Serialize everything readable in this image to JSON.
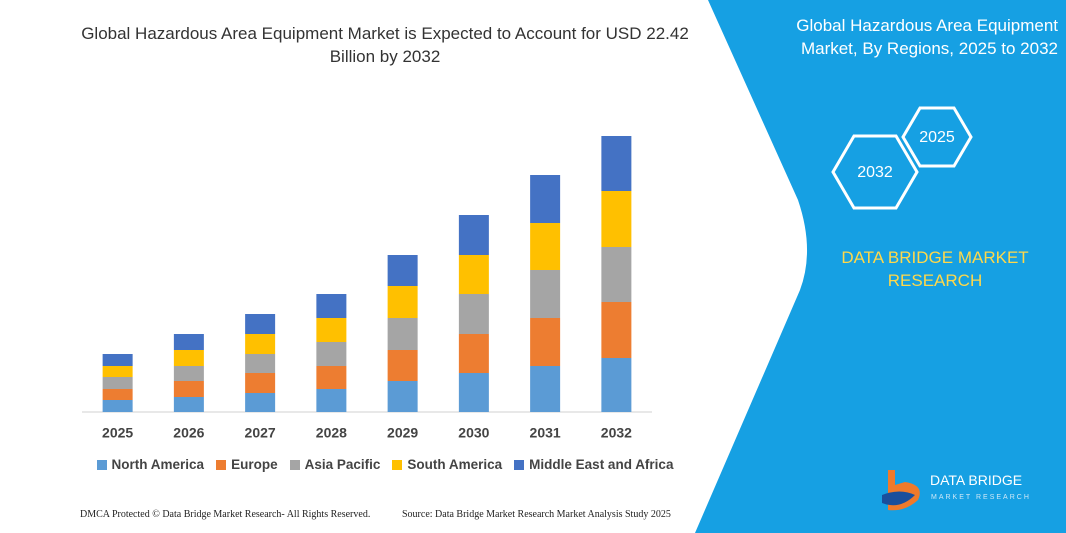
{
  "chart_data": {
    "type": "stacked_bar",
    "title": "Global Hazardous Area Equipment Market is Expected to Account for USD 22.42 Billion by 2032",
    "categories": [
      "2025",
      "2026",
      "2027",
      "2028",
      "2029",
      "2030",
      "2031",
      "2032"
    ],
    "series": [
      {
        "name": "North America",
        "color": "#5b9bd5",
        "values": [
          12,
          15,
          19,
          23,
          31,
          39,
          46,
          54
        ]
      },
      {
        "name": "Europe",
        "color": "#ed7d31",
        "values": [
          11,
          16,
          20,
          23,
          31,
          39,
          48,
          56
        ]
      },
      {
        "name": "Asia Pacific",
        "color": "#a5a5a5",
        "values": [
          12,
          15,
          19,
          24,
          32,
          40,
          48,
          55
        ]
      },
      {
        "name": "South America",
        "color": "#ffc000",
        "values": [
          11,
          16,
          20,
          24,
          32,
          39,
          47,
          56
        ]
      },
      {
        "name": "Middle East and Africa",
        "color": "#4472c4",
        "values": [
          12,
          16,
          20,
          24,
          31,
          40,
          48,
          55
        ]
      }
    ],
    "ylim": [
      0,
      276
    ]
  },
  "panel": {
    "title": "Global Hazardous Area Equipment Market, By Regions, 2025 to 2032",
    "hexagons": [
      "2025",
      "2032"
    ],
    "brand": "DATA BRIDGE MARKET RESEARCH"
  },
  "logo": {
    "name": "DATA BRIDGE",
    "tagline": "MARKET RESEARCH"
  },
  "footer": {
    "rights": "DMCA Protected © Data Bridge Market Research- All Rights Reserved.",
    "source": "Source: Data Bridge Market Research Market Analysis Study 2025"
  }
}
